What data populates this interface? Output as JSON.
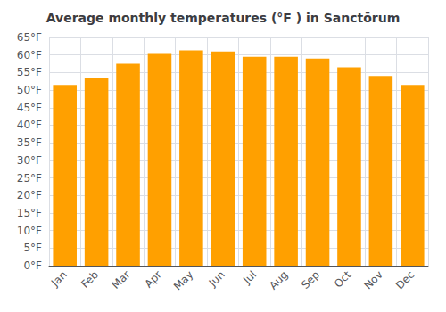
{
  "chart_data": {
    "type": "bar",
    "title": "Average monthly temperatures (°F ) in Sanctōrum",
    "categories": [
      "Jan",
      "Feb",
      "Mar",
      "Apr",
      "May",
      "Jun",
      "Jul",
      "Aug",
      "Sep",
      "Oct",
      "Nov",
      "Dec"
    ],
    "values": [
      51.5,
      53.5,
      57.5,
      60.3,
      61.3,
      61.0,
      59.5,
      59.5,
      59.0,
      56.5,
      54.0,
      51.5
    ],
    "color": "#FFA000",
    "ylim": [
      0,
      65
    ],
    "yticks": [
      {
        "value": 0,
        "label": "0°F"
      },
      {
        "value": 5,
        "label": "5°F"
      },
      {
        "value": 10,
        "label": "10°F"
      },
      {
        "value": 15,
        "label": "15°F"
      },
      {
        "value": 20,
        "label": "20°F"
      },
      {
        "value": 25,
        "label": "25°F"
      },
      {
        "value": 30,
        "label": "30°F"
      },
      {
        "value": 35,
        "label": "35°F"
      },
      {
        "value": 40,
        "label": "40°F"
      },
      {
        "value": 45,
        "label": "45°F"
      },
      {
        "value": 50,
        "label": "50°F"
      },
      {
        "value": 55,
        "label": "55°F"
      },
      {
        "value": 60,
        "label": "60°F"
      },
      {
        "value": 65,
        "label": "65°F"
      }
    ],
    "grid": true
  }
}
